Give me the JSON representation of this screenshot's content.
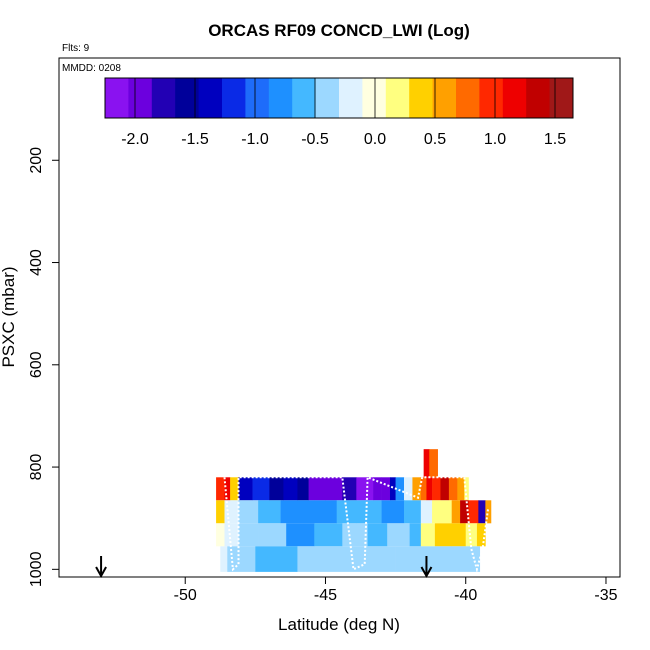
{
  "chart_data": {
    "type": "heatmap",
    "title": "ORCAS RF09 CONCD_LWI (Log)",
    "xlabel": "Latitude (deg N)",
    "ylabel": "PSXC (mbar)",
    "annotations": {
      "flights": "Flts: 9",
      "date": "MMDD: 0208"
    },
    "xlim": [
      -54.5,
      -34.5
    ],
    "ylim": [
      1015,
      0
    ],
    "x_ticks": [
      -50,
      -45,
      -40,
      -35
    ],
    "y_ticks": [
      200,
      400,
      600,
      800,
      1000
    ],
    "colorbar": {
      "range": [
        -2.25,
        1.65
      ],
      "ticks": [
        -2.0,
        -1.5,
        -1.0,
        -0.5,
        0.0,
        0.5,
        1.0,
        1.5
      ],
      "colors": [
        "#8a12f0",
        "#6c00de",
        "#2200b4",
        "#00009a",
        "#0000bf",
        "#0a2ae6",
        "#1e6cfa",
        "#1e90ff",
        "#44b8ff",
        "#9cd8ff",
        "#dff2ff",
        "#ffffe0",
        "#ffff80",
        "#ffd000",
        "#ffa000",
        "#ff6a00",
        "#ff2800",
        "#ee0000",
        "#c00000",
        "#a01818"
      ]
    },
    "rows": [
      {
        "p": [
          820,
          865
        ],
        "cells": [
          [
            -48.9,
            -48.6,
            0.9
          ],
          [
            -48.6,
            -48.4,
            1.2
          ],
          [
            -48.4,
            -48.1,
            0.4
          ],
          [
            -48.1,
            -47.6,
            -1.3
          ],
          [
            -47.6,
            -47.0,
            -1.2
          ],
          [
            -47.0,
            -46.5,
            -1.5
          ],
          [
            -46.5,
            -46.0,
            -1.4
          ],
          [
            -46.0,
            -45.6,
            -1.5
          ],
          [
            -45.6,
            -45.0,
            -2.0
          ],
          [
            -45.0,
            -44.4,
            -1.9
          ],
          [
            -44.4,
            -43.9,
            -1.8
          ],
          [
            -43.9,
            -43.3,
            -2.1
          ],
          [
            -43.3,
            -43.0,
            -2.0
          ],
          [
            -43.0,
            -42.7,
            -1.9
          ],
          [
            -42.7,
            -42.5,
            -1.3
          ],
          [
            -42.5,
            -42.2,
            -0.8
          ],
          [
            -42.2,
            -41.9,
            -0.3
          ],
          [
            -41.9,
            -41.6,
            0.55
          ],
          [
            -41.6,
            -41.4,
            0.85
          ],
          [
            -41.4,
            -41.2,
            1.2
          ],
          [
            -41.2,
            -40.9,
            1.0
          ],
          [
            -40.9,
            -40.6,
            1.3
          ],
          [
            -40.6,
            -40.3,
            0.7
          ],
          [
            -40.3,
            -40.05,
            0.5
          ],
          [
            -40.05,
            -39.9,
            0.25
          ]
        ]
      },
      {
        "p": [
          765,
          820
        ],
        "cells": [
          [
            -41.5,
            -41.3,
            1.1
          ],
          [
            -41.3,
            -41.0,
            0.85
          ]
        ]
      },
      {
        "p": [
          865,
          910
        ],
        "cells": [
          [
            -48.9,
            -48.6,
            0.35
          ],
          [
            -48.6,
            -48.1,
            -0.2
          ],
          [
            -48.1,
            -47.4,
            -0.35
          ],
          [
            -47.4,
            -46.6,
            -0.6
          ],
          [
            -46.6,
            -45.4,
            -0.85
          ],
          [
            -45.4,
            -44.6,
            -0.7
          ],
          [
            -44.6,
            -43.9,
            -0.6
          ],
          [
            -43.9,
            -43.0,
            -0.55
          ],
          [
            -43.0,
            -42.2,
            -0.7
          ],
          [
            -42.2,
            -41.6,
            -0.5
          ],
          [
            -41.6,
            -41.2,
            -0.25
          ],
          [
            -41.2,
            -40.9,
            0.1
          ],
          [
            -40.9,
            -40.5,
            0.25
          ],
          [
            -40.5,
            -40.2,
            0.6
          ],
          [
            -40.2,
            -39.9,
            1.3
          ],
          [
            -39.9,
            -39.55,
            1.0
          ],
          [
            -39.55,
            -39.3,
            -1.7
          ],
          [
            -39.3,
            -39.1,
            0.5
          ]
        ]
      },
      {
        "p": [
          910,
          955
        ],
        "cells": [
          [
            -48.9,
            -48.6,
            0.05
          ],
          [
            -48.6,
            -48.1,
            -0.2
          ],
          [
            -48.1,
            -47.4,
            -0.35
          ],
          [
            -47.4,
            -46.4,
            -0.45
          ],
          [
            -46.4,
            -45.4,
            -0.7
          ],
          [
            -45.4,
            -44.4,
            -0.55
          ],
          [
            -44.4,
            -43.5,
            -0.45
          ],
          [
            -43.5,
            -42.8,
            -0.5
          ],
          [
            -42.8,
            -42.0,
            -0.4
          ],
          [
            -42.0,
            -41.6,
            -0.6
          ],
          [
            -41.6,
            -41.1,
            0.1
          ],
          [
            -41.1,
            -40.5,
            0.3
          ],
          [
            -40.5,
            -40.0,
            0.4
          ],
          [
            -40.0,
            -39.6,
            0.25
          ],
          [
            -39.6,
            -39.3,
            0.45
          ]
        ]
      },
      {
        "p": [
          955,
          1005
        ],
        "cells": [
          [
            -48.75,
            -48.5,
            -0.3
          ],
          [
            -48.5,
            -47.5,
            -0.45
          ],
          [
            -47.5,
            -46.0,
            -0.5
          ],
          [
            -46.0,
            -44.0,
            -0.45
          ],
          [
            -44.0,
            -42.5,
            -0.45
          ],
          [
            -42.5,
            -41.0,
            -0.4
          ],
          [
            -41.0,
            -39.5,
            -0.35
          ]
        ]
      }
    ],
    "track": [
      [
        -48.6,
        820
      ],
      [
        -48.3,
        1000
      ],
      [
        -48.1,
        990
      ],
      [
        -48.1,
        820
      ],
      [
        -44.4,
        820
      ],
      [
        -44.0,
        1000
      ],
      [
        -43.6,
        990
      ],
      [
        -43.5,
        820
      ],
      [
        -41.7,
        860
      ],
      [
        -41.55,
        820
      ],
      [
        -40.05,
        820
      ],
      [
        -39.8,
        960
      ],
      [
        -39.6,
        1000
      ],
      [
        -39.4,
        960
      ],
      [
        -39.2,
        880
      ]
    ],
    "markers": [
      -53.0,
      -41.4
    ]
  }
}
